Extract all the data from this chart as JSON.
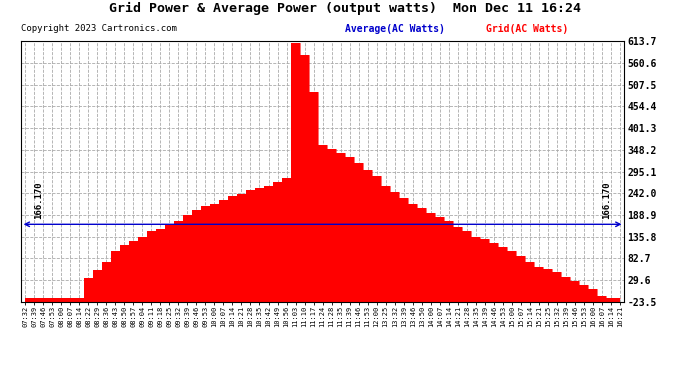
{
  "title": "Grid Power & Average Power (output watts)  Mon Dec 11 16:24",
  "copyright": "Copyright 2023 Cartronics.com",
  "legend_avg": "Average(AC Watts)",
  "legend_grid": "Grid(AC Watts)",
  "avg_value": 166.17,
  "avg_label": "166.170",
  "y_min": -23.5,
  "y_max": 613.7,
  "y_ticks": [
    613.7,
    560.6,
    507.5,
    454.4,
    401.3,
    348.2,
    295.1,
    242.0,
    188.9,
    135.8,
    82.7,
    29.6,
    -23.5
  ],
  "background_color": "#ffffff",
  "plot_bg_color": "#ffffff",
  "bar_color": "#ff0000",
  "avg_line_color": "#0000cc",
  "title_color": "#000000",
  "copyright_color": "#000000",
  "legend_avg_color": "#0000cc",
  "legend_grid_color": "#ff0000",
  "x_labels": [
    "07:32",
    "07:39",
    "07:46",
    "07:53",
    "08:00",
    "08:07",
    "08:14",
    "08:22",
    "08:29",
    "08:36",
    "08:43",
    "08:50",
    "08:57",
    "09:04",
    "09:11",
    "09:18",
    "09:25",
    "09:32",
    "09:39",
    "09:46",
    "09:53",
    "10:00",
    "10:07",
    "10:14",
    "10:21",
    "10:28",
    "10:35",
    "10:42",
    "10:49",
    "10:56",
    "11:03",
    "11:10",
    "11:17",
    "11:24",
    "11:28",
    "11:35",
    "11:39",
    "11:46",
    "11:53",
    "12:00",
    "13:25",
    "13:32",
    "13:39",
    "13:46",
    "13:50",
    "14:00",
    "14:07",
    "14:14",
    "14:21",
    "14:28",
    "14:35",
    "14:39",
    "14:46",
    "14:53",
    "15:00",
    "15:07",
    "15:14",
    "15:21",
    "15:25",
    "15:32",
    "15:39",
    "15:46",
    "15:53",
    "16:00",
    "16:07",
    "16:14",
    "16:21"
  ],
  "values": [
    -15,
    -15,
    -15,
    -15,
    -15,
    -15,
    -15,
    35,
    55,
    75,
    100,
    115,
    125,
    135,
    150,
    155,
    165,
    175,
    190,
    200,
    210,
    215,
    225,
    235,
    240,
    250,
    255,
    260,
    270,
    280,
    610,
    580,
    490,
    360,
    350,
    340,
    330,
    315,
    300,
    285,
    260,
    245,
    230,
    215,
    205,
    195,
    185,
    175,
    160,
    150,
    135,
    130,
    120,
    110,
    100,
    88,
    75,
    62,
    58,
    50,
    38,
    28,
    18,
    8,
    -10,
    -15,
    -15
  ]
}
